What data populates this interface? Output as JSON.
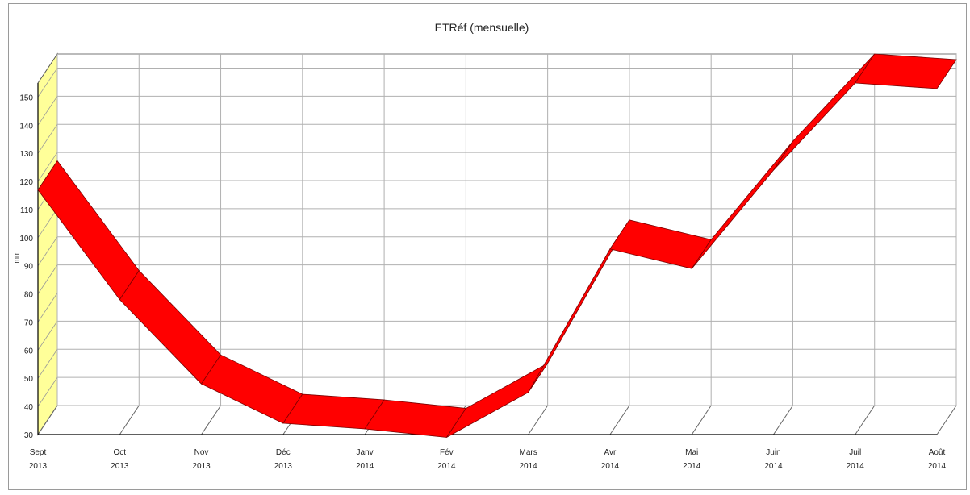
{
  "chart_data": {
    "type": "area",
    "title": "ETRéf (mensuelle)",
    "ylabel": "mm",
    "xlabel": "",
    "ylim": [
      30,
      155
    ],
    "yticks": [
      30,
      40,
      50,
      60,
      70,
      80,
      90,
      100,
      110,
      120,
      130,
      140,
      150
    ],
    "categories": [
      {
        "month": "Sept",
        "year": "2013"
      },
      {
        "month": "Oct",
        "year": "2013"
      },
      {
        "month": "Nov",
        "year": "2013"
      },
      {
        "month": "Déc",
        "year": "2013"
      },
      {
        "month": "Janv",
        "year": "2014"
      },
      {
        "month": "Fév",
        "year": "2014"
      },
      {
        "month": "Mars",
        "year": "2014"
      },
      {
        "month": "Avr",
        "year": "2014"
      },
      {
        "month": "Mai",
        "year": "2014"
      },
      {
        "month": "Juin",
        "year": "2014"
      },
      {
        "month": "Juil",
        "year": "2014"
      },
      {
        "month": "Août",
        "year": "2014"
      }
    ],
    "values": [
      117,
      78,
      48,
      34,
      32,
      29,
      45,
      96,
      89,
      124,
      155,
      153
    ],
    "grid": true,
    "three_d": true,
    "colors": {
      "series": "#ff0000",
      "back_wall": "#ffff99",
      "grid": "#b0b0b0",
      "axis": "#000000"
    }
  }
}
